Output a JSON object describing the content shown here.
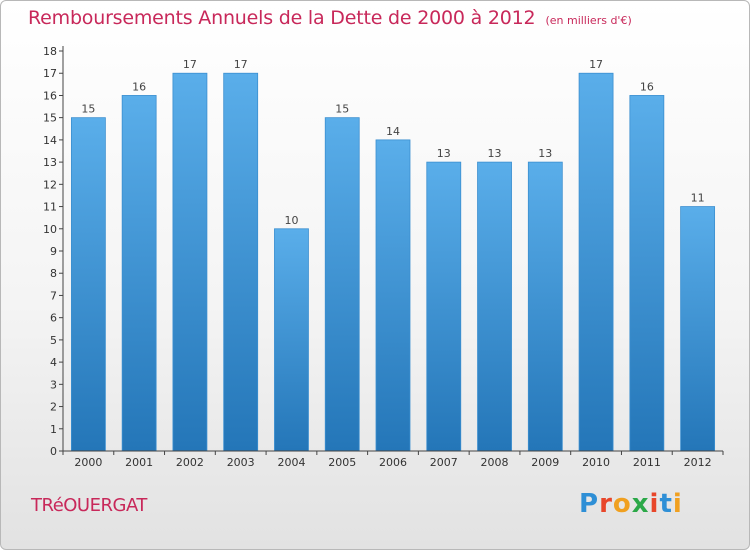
{
  "title": "Remboursements Annuels de la Dette de 2000 à 2012",
  "unit": "(en milliers d'€)",
  "town": "TRéOUERGAT",
  "logo": {
    "letters": [
      "P",
      "r",
      "o",
      "x",
      "i",
      "t",
      "i"
    ],
    "colors": [
      "#2e8fd6",
      "#e8462a",
      "#f0a020",
      "#2ba848",
      "#e8462a",
      "#2e8fd6",
      "#f0a020"
    ]
  },
  "colors": {
    "title": "#c8285a",
    "bar_top": "#5aaeea",
    "bar_bottom": "#2476b8",
    "axis": "#444444"
  },
  "chart_data": {
    "type": "bar",
    "categories": [
      "2000",
      "2001",
      "2002",
      "2003",
      "2004",
      "2005",
      "2006",
      "2007",
      "2008",
      "2009",
      "2010",
      "2011",
      "2012"
    ],
    "values": [
      15,
      16,
      17,
      17,
      10,
      15,
      14,
      13,
      13,
      13,
      17,
      16,
      11
    ],
    "data_labels": [
      "15",
      "16",
      "17",
      "17",
      "10",
      "15",
      "14",
      "13",
      "13",
      "13",
      "17",
      "16",
      "11"
    ],
    "yticks": [
      "0",
      "1",
      "2",
      "3",
      "4",
      "5",
      "6",
      "7",
      "8",
      "9",
      "10",
      "11",
      "12",
      "13",
      "14",
      "15",
      "16",
      "17",
      "18"
    ],
    "ylim": [
      0,
      18
    ],
    "grid": false
  }
}
